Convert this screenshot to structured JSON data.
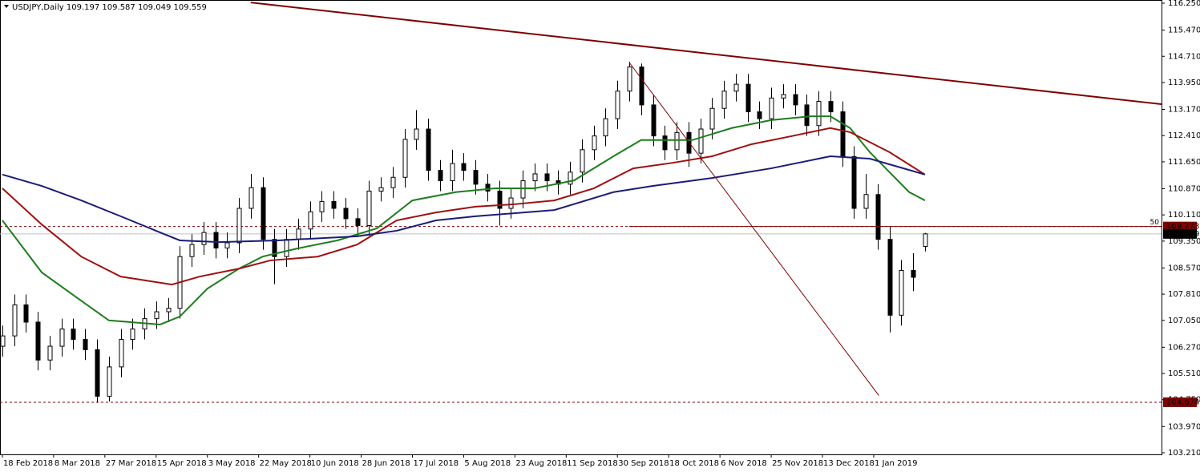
{
  "chart_data": {
    "type": "candlestick",
    "title": "USDJPY,Daily  109.197 109.587 109.049 109.559",
    "xlim": [
      -0.6,
      294
    ],
    "ylim": [
      103.21,
      116.25
    ],
    "yticks": [
      {
        "value": 116.25,
        "label": "116.250"
      },
      {
        "value": 115.47,
        "label": "115.470"
      },
      {
        "value": 114.71,
        "label": "114.710"
      },
      {
        "value": 113.95,
        "label": "113.950"
      },
      {
        "value": 113.17,
        "label": "113.170"
      },
      {
        "value": 112.41,
        "label": "112.410"
      },
      {
        "value": 111.65,
        "label": "111.650"
      },
      {
        "value": 110.87,
        "label": "110.870"
      },
      {
        "value": 110.11,
        "label": "110.110"
      },
      {
        "value": 109.35,
        "label": "109.350"
      },
      {
        "value": 108.57,
        "label": "108.570"
      },
      {
        "value": 107.81,
        "label": "107.810"
      },
      {
        "value": 107.05,
        "label": "107.050"
      },
      {
        "value": 106.27,
        "label": "106.270"
      },
      {
        "value": 105.51,
        "label": "105.510"
      },
      {
        "value": 104.75,
        "label": "104.750"
      },
      {
        "value": 103.97,
        "label": "103.970"
      },
      {
        "value": 103.21,
        "label": "103.210"
      }
    ],
    "xticks": [
      {
        "value": 0,
        "label": "18 Feb 2018"
      },
      {
        "value": 13,
        "label": "8 Mar 2018"
      },
      {
        "value": 26,
        "label": "27 Mar 2018"
      },
      {
        "value": 39,
        "label": "15 Apr 2018"
      },
      {
        "value": 52,
        "label": "3 May 2018"
      },
      {
        "value": 65,
        "label": "22 May 2018"
      },
      {
        "value": 78,
        "label": "10 Jun 2018"
      },
      {
        "value": 91,
        "label": "28 Jun 2018"
      },
      {
        "value": 104,
        "label": "17 Jul 2018"
      },
      {
        "value": 117,
        "label": "5 Aug 2018"
      },
      {
        "value": 130,
        "label": "23 Aug 2018"
      },
      {
        "value": 143,
        "label": "11 Sep 2018"
      },
      {
        "value": 156,
        "label": "30 Sep 2018"
      },
      {
        "value": 169,
        "label": "18 Oct 2018"
      },
      {
        "value": 182,
        "label": "6 Nov 2018"
      },
      {
        "value": 195,
        "label": "25 Nov 2018"
      },
      {
        "value": 208,
        "label": "13 Dec 2018"
      },
      {
        "value": 221,
        "label": "1 Jan 2019"
      }
    ],
    "candles": {
      "x": [
        0,
        3,
        6,
        9,
        12,
        15,
        18,
        21,
        24,
        27,
        30,
        33,
        36,
        39,
        42,
        45,
        48,
        51,
        54,
        57,
        60,
        63,
        66,
        69,
        72,
        75,
        78,
        81,
        84,
        87,
        90,
        93,
        96,
        99,
        102,
        105,
        108,
        111,
        114,
        117,
        120,
        123,
        126,
        129,
        132,
        135,
        138,
        141,
        144,
        147,
        150,
        153,
        156,
        159,
        162,
        165,
        168,
        171,
        174,
        177,
        180,
        183,
        186,
        189,
        192,
        195,
        198,
        201,
        204,
        207,
        210,
        213,
        216,
        219,
        222,
        225,
        228,
        231,
        234
      ],
      "open": [
        106.3,
        106.6,
        107.5,
        107.0,
        105.9,
        106.3,
        106.8,
        106.5,
        106.2,
        104.85,
        105.7,
        106.5,
        106.8,
        107.1,
        107.3,
        107.4,
        108.9,
        109.25,
        109.6,
        109.15,
        109.3,
        110.3,
        110.9,
        109.4,
        108.9,
        109.4,
        109.7,
        110.2,
        110.5,
        110.3,
        110.0,
        109.8,
        110.8,
        110.9,
        111.2,
        112.3,
        112.6,
        111.4,
        111.1,
        111.6,
        111.4,
        111.0,
        110.8,
        110.3,
        110.6,
        111.1,
        111.3,
        111.1,
        111.0,
        111.35,
        112.0,
        112.4,
        112.9,
        113.7,
        114.4,
        113.3,
        112.4,
        112.0,
        112.5,
        111.9,
        112.6,
        113.2,
        113.7,
        113.9,
        113.1,
        112.9,
        113.5,
        113.6,
        113.3,
        112.7,
        113.4,
        113.1,
        111.8,
        110.3,
        110.7,
        109.4,
        107.2,
        108.5,
        109.197
      ],
      "high": [
        106.9,
        107.8,
        107.8,
        107.3,
        106.6,
        107.1,
        107.1,
        106.8,
        106.5,
        106.0,
        106.8,
        107.1,
        107.4,
        107.6,
        107.7,
        109.2,
        109.55,
        109.9,
        109.9,
        109.6,
        110.6,
        111.3,
        111.2,
        109.7,
        109.7,
        110.0,
        110.5,
        110.8,
        110.8,
        110.6,
        110.3,
        111.1,
        111.2,
        111.5,
        112.6,
        113.15,
        112.9,
        111.7,
        112.0,
        111.9,
        111.7,
        111.3,
        111.1,
        110.9,
        111.4,
        111.6,
        111.6,
        111.4,
        111.65,
        112.3,
        112.7,
        113.2,
        114.0,
        114.55,
        114.5,
        113.6,
        112.7,
        112.8,
        112.8,
        112.9,
        113.5,
        114.0,
        114.2,
        114.2,
        113.4,
        113.8,
        113.9,
        113.9,
        113.6,
        113.7,
        113.7,
        113.4,
        112.1,
        111.3,
        111.0,
        109.77,
        108.8,
        109.0,
        109.587
      ],
      "low": [
        106.0,
        106.3,
        106.7,
        105.6,
        105.6,
        106.0,
        106.2,
        105.9,
        104.674,
        104.7,
        105.4,
        106.2,
        106.5,
        106.8,
        107.0,
        107.1,
        108.6,
        108.95,
        108.85,
        108.85,
        109.0,
        110.0,
        109.1,
        108.1,
        108.6,
        109.1,
        109.4,
        109.9,
        110.0,
        109.7,
        109.5,
        109.5,
        110.5,
        110.6,
        110.9,
        112.0,
        111.1,
        110.8,
        110.8,
        111.1,
        110.7,
        110.5,
        109.8,
        110.0,
        110.3,
        110.8,
        110.8,
        110.7,
        110.7,
        111.05,
        111.7,
        112.1,
        112.6,
        113.4,
        113.0,
        112.1,
        111.7,
        111.7,
        111.5,
        111.6,
        112.3,
        112.9,
        113.4,
        112.8,
        112.6,
        112.6,
        113.2,
        113.0,
        112.4,
        112.4,
        112.8,
        111.5,
        110.0,
        110.0,
        109.1,
        106.7,
        106.9,
        107.9,
        109.049
      ],
      "close": [
        106.6,
        107.5,
        107.0,
        105.9,
        106.3,
        106.8,
        106.5,
        106.2,
        104.85,
        105.7,
        106.5,
        106.8,
        107.1,
        107.3,
        107.4,
        108.9,
        109.25,
        109.6,
        109.15,
        109.3,
        110.3,
        110.9,
        109.4,
        108.9,
        109.4,
        109.7,
        110.2,
        110.5,
        110.3,
        110.0,
        109.8,
        110.8,
        110.9,
        111.2,
        112.3,
        112.6,
        111.4,
        111.1,
        111.6,
        111.4,
        111.0,
        110.8,
        110.3,
        110.6,
        111.1,
        111.3,
        111.1,
        111.0,
        111.35,
        112.0,
        112.4,
        112.9,
        113.7,
        114.4,
        113.3,
        112.4,
        112.0,
        112.5,
        111.9,
        112.6,
        113.2,
        113.7,
        113.9,
        113.1,
        112.9,
        113.5,
        113.6,
        113.3,
        112.7,
        113.4,
        113.1,
        111.8,
        110.3,
        110.7,
        109.4,
        107.2,
        108.5,
        108.3,
        109.559
      ]
    },
    "series": [
      {
        "color": "#1e7d1e",
        "x": [
          0,
          10,
          20,
          27,
          40,
          45,
          52,
          60,
          66,
          75,
          85,
          95,
          104,
          115,
          125,
          135,
          145,
          155,
          162,
          175,
          185,
          195,
          205,
          210,
          215,
          220,
          225,
          230,
          234
        ],
        "values": [
          109.95,
          108.44,
          107.62,
          107.05,
          106.93,
          107.16,
          107.97,
          108.55,
          108.9,
          109.14,
          109.37,
          109.72,
          110.53,
          110.77,
          110.88,
          110.88,
          111.11,
          111.81,
          112.28,
          112.28,
          112.63,
          112.86,
          112.97,
          112.97,
          112.63,
          111.93,
          111.35,
          110.77,
          110.53
        ]
      },
      {
        "color": "#a01010",
        "x": [
          0,
          10,
          20,
          30,
          43,
          50,
          60,
          68,
          80,
          90,
          100,
          110,
          120,
          130,
          140,
          150,
          160,
          170,
          180,
          190,
          200,
          210,
          215,
          225,
          234
        ],
        "values": [
          110.88,
          109.83,
          108.9,
          108.32,
          108.09,
          108.32,
          108.55,
          108.79,
          108.9,
          109.25,
          109.95,
          110.18,
          110.35,
          110.42,
          110.53,
          110.88,
          111.46,
          111.62,
          111.81,
          112.16,
          112.39,
          112.63,
          112.51,
          111.93,
          111.28
        ]
      },
      {
        "color": "#1c1c78",
        "x": [
          0,
          10,
          20,
          30,
          40,
          45,
          55,
          70,
          90,
          100,
          110,
          120,
          140,
          155,
          165,
          180,
          195,
          210,
          220,
          234
        ],
        "values": [
          111.28,
          110.95,
          110.53,
          110.07,
          109.6,
          109.37,
          109.32,
          109.37,
          109.49,
          109.65,
          109.95,
          110.07,
          110.25,
          110.77,
          110.95,
          111.18,
          111.46,
          111.81,
          111.74,
          111.28
        ]
      }
    ],
    "trendlines": [
      {
        "color": "#800000",
        "width": 2,
        "x": [
          63,
          294
        ],
        "y": [
          116.27,
          113.32
        ]
      },
      {
        "color": "#800000",
        "width": 1,
        "x": [
          159,
          222.3
        ],
        "y": [
          114.53,
          104.87
        ]
      }
    ],
    "fibo_label": "50",
    "levels": [
      {
        "value": 109.773,
        "color": "#800000",
        "dashed": true
      },
      {
        "value": 109.559,
        "color": "#000000",
        "dashed": false
      },
      {
        "value": 104.674,
        "color": "#800000",
        "dashed": true
      }
    ]
  }
}
